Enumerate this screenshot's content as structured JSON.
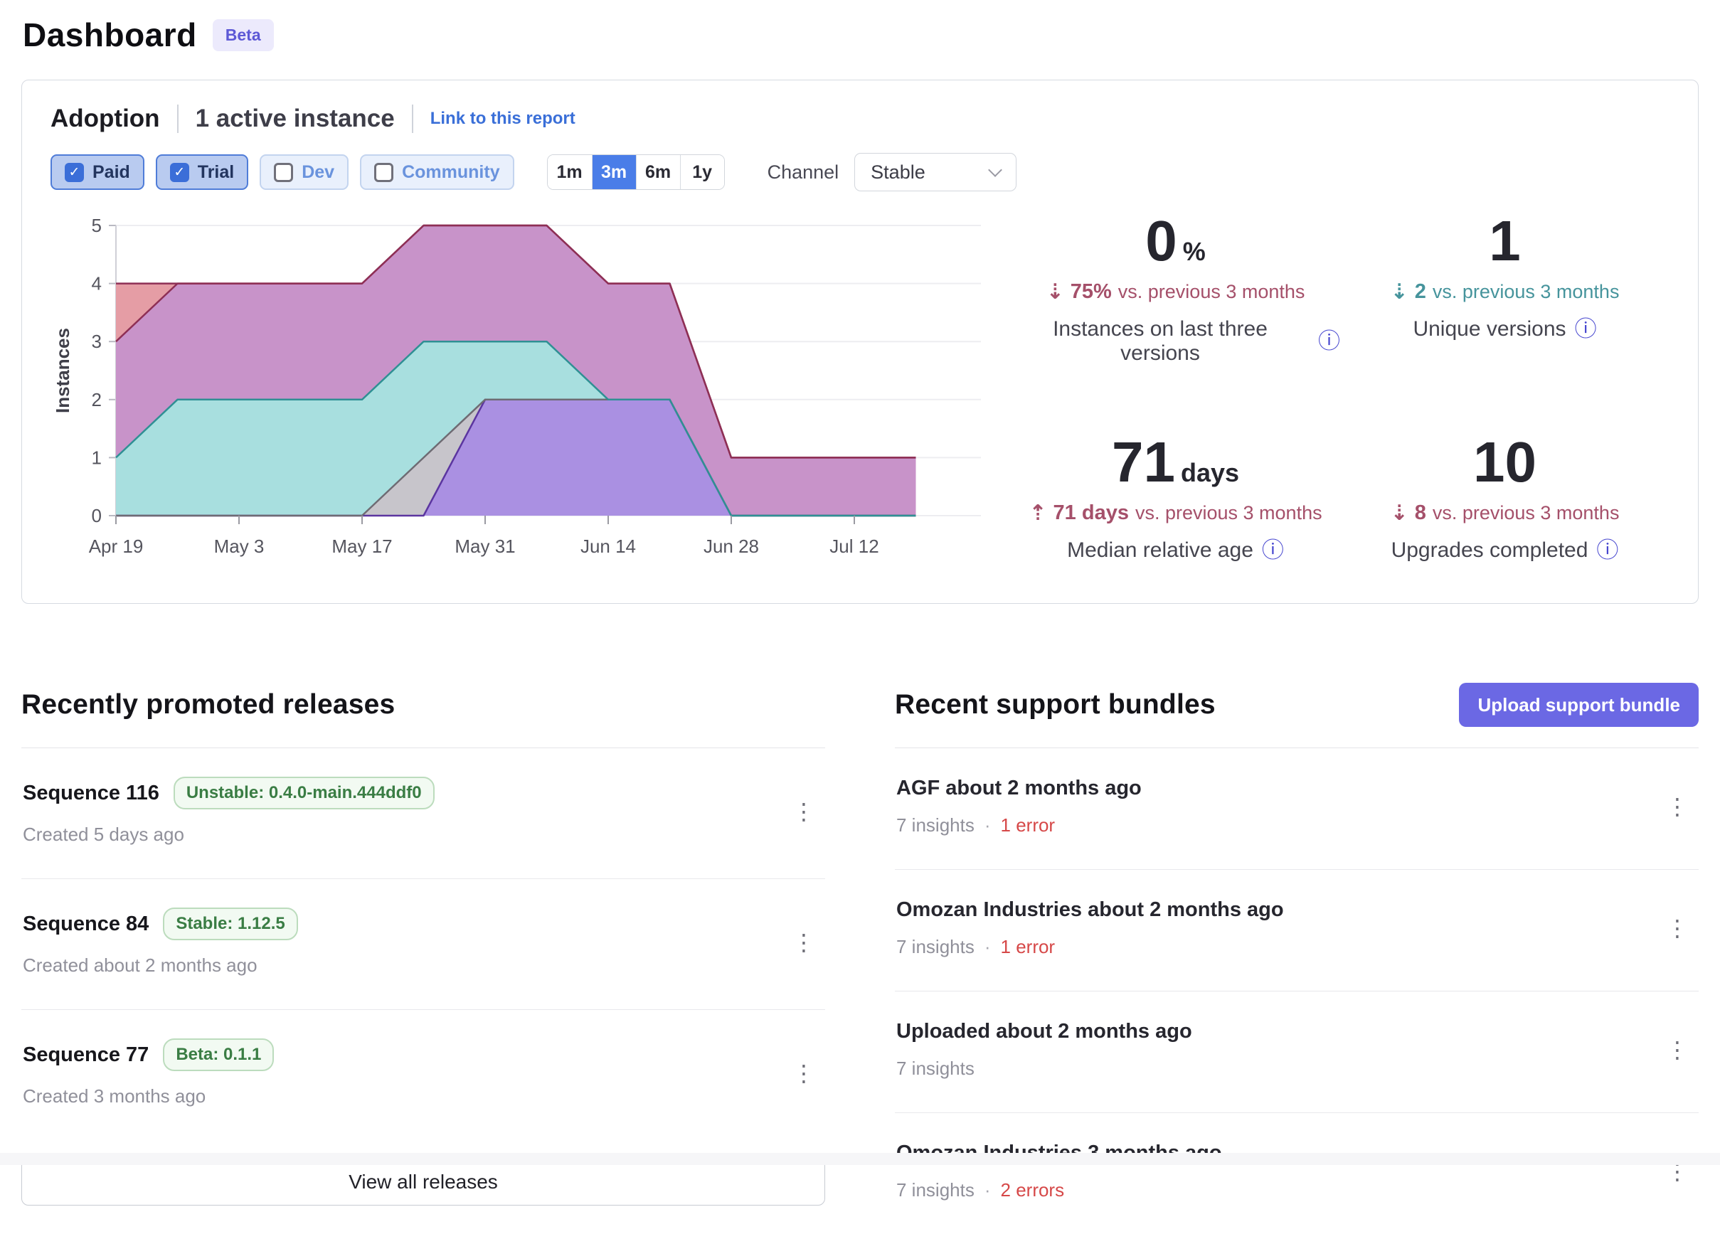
{
  "page": {
    "title": "Dashboard",
    "beta_badge": "Beta"
  },
  "icons": {
    "down_dashed_arrow": "⇣",
    "up_dashed_arrow": "⇡",
    "info": "ⓘ",
    "kebab": "⋮",
    "check": "✓",
    "dot_separator": "·",
    "chevron_down": "chevron-down"
  },
  "colors": {
    "accent_blue": "#4a7de8",
    "link_blue": "#3a6fd8",
    "indigo_button": "#6b68e4",
    "beta_text": "#5d59d6",
    "beta_bg": "#eceafc",
    "badge_green_text": "#3a7d44",
    "badge_green_bg": "#f2faf2",
    "badge_green_border": "#bcdcbd",
    "error_red": "#d64848",
    "delta_down_maroon": "#a5506a",
    "delta_teal": "#46949c",
    "info_icon": "#4646cf"
  },
  "adoption": {
    "title": "Adoption",
    "active_instances": "1 active instance",
    "link_label": "Link to this report",
    "filters": [
      {
        "label": "Paid",
        "checked": true
      },
      {
        "label": "Trial",
        "checked": true
      },
      {
        "label": "Dev",
        "checked": false
      },
      {
        "label": "Community",
        "checked": false
      }
    ],
    "ranges": [
      "1m",
      "3m",
      "6m",
      "1y"
    ],
    "selected_range": "3m",
    "channel_label": "Channel",
    "channel_value": "Stable",
    "stats": [
      {
        "value": "0",
        "unit": "%",
        "delta_direction": "down",
        "delta_value": "75%",
        "delta_suffix": "vs. previous 3 months",
        "delta_color": "#a5506a",
        "label": "Instances on last three versions"
      },
      {
        "value": "1",
        "unit": "",
        "delta_direction": "down",
        "delta_value": "2",
        "delta_suffix": "vs. previous 3 months",
        "delta_color": "#46949c",
        "label": "Unique versions"
      },
      {
        "value": "71",
        "unit": "days",
        "delta_direction": "up",
        "delta_value": "71 days",
        "delta_suffix": "vs. previous 3 months",
        "delta_color": "#a5506a",
        "label": "Median relative age"
      },
      {
        "value": "10",
        "unit": "",
        "delta_direction": "down",
        "delta_value": "8",
        "delta_suffix": "vs. previous 3 months",
        "delta_color": "#a5506a",
        "label": "Upgrades completed"
      }
    ]
  },
  "chart_data": {
    "type": "area",
    "stacked": true,
    "title": "",
    "xlabel": "",
    "ylabel": "Instances",
    "ylim": [
      0,
      5
    ],
    "y_ticks": [
      0,
      1,
      2,
      3,
      4,
      5
    ],
    "x": [
      "Apr 19",
      "Apr 26",
      "May 3",
      "May 10",
      "May 17",
      "May 24",
      "May 31",
      "Jun 7",
      "Jun 14",
      "Jun 21",
      "Jun 28",
      "Jul 5",
      "Jul 12",
      "Jul 19"
    ],
    "x_tick_indices": [
      0,
      2,
      4,
      6,
      8,
      10,
      12
    ],
    "x_tick_labels": [
      "Apr 19",
      "May 3",
      "May 17",
      "May 31",
      "Jun 14",
      "Jun 28",
      "Jul 12"
    ],
    "legend": "none",
    "grid": "horizontal",
    "series": [
      {
        "name": "version-1-purple",
        "fill": "#aa90e2",
        "line": "#5b35a0",
        "values": [
          0,
          0,
          0,
          0,
          0,
          0,
          2,
          2,
          2,
          2,
          0,
          0,
          0,
          0
        ]
      },
      {
        "name": "version-2-gray",
        "fill": "#c7c5cb",
        "line": "#6e6b73",
        "values": [
          0,
          0,
          0,
          0,
          0,
          1,
          0,
          0,
          0,
          0,
          0,
          0,
          0,
          0
        ]
      },
      {
        "name": "version-3-teal",
        "fill": "#a8dfdf",
        "line": "#2f9094",
        "values": [
          1,
          2,
          2,
          2,
          2,
          2,
          1,
          1,
          0,
          0,
          0,
          0,
          0,
          0
        ]
      },
      {
        "name": "version-4-mauve",
        "fill": "#c893c9",
        "line": "#8e2f55",
        "values": [
          2,
          2,
          2,
          2,
          2,
          2,
          2,
          2,
          2,
          2,
          1,
          1,
          1,
          1
        ]
      },
      {
        "name": "version-5-red",
        "fill": "#e59da5",
        "line": "#8e2f55",
        "values": [
          1,
          0,
          0,
          0,
          0,
          0,
          0,
          0,
          0,
          0,
          0,
          0,
          0,
          0
        ]
      }
    ]
  },
  "releases": {
    "heading": "Recently promoted releases",
    "view_all_label": "View all releases",
    "items": [
      {
        "title": "Sequence 116",
        "badge": "Unstable: 0.4.0-main.444ddf0",
        "created": "Created 5 days ago"
      },
      {
        "title": "Sequence 84",
        "badge": "Stable: 1.12.5",
        "created": "Created about 2 months ago"
      },
      {
        "title": "Sequence 77",
        "badge": "Beta: 0.1.1",
        "created": "Created 3 months ago"
      }
    ]
  },
  "support_bundles": {
    "heading": "Recent support bundles",
    "upload_label": "Upload support bundle",
    "items": [
      {
        "title": "AGF about 2 months ago",
        "insights": "7 insights",
        "errors": "1 error"
      },
      {
        "title": "Omozan Industries about 2 months ago",
        "insights": "7 insights",
        "errors": "1 error"
      },
      {
        "title": "Uploaded about 2 months ago",
        "insights": "7 insights",
        "errors": null
      },
      {
        "title": "Omozan Industries 3 months ago",
        "insights": "7 insights",
        "errors": "2 errors"
      }
    ]
  }
}
